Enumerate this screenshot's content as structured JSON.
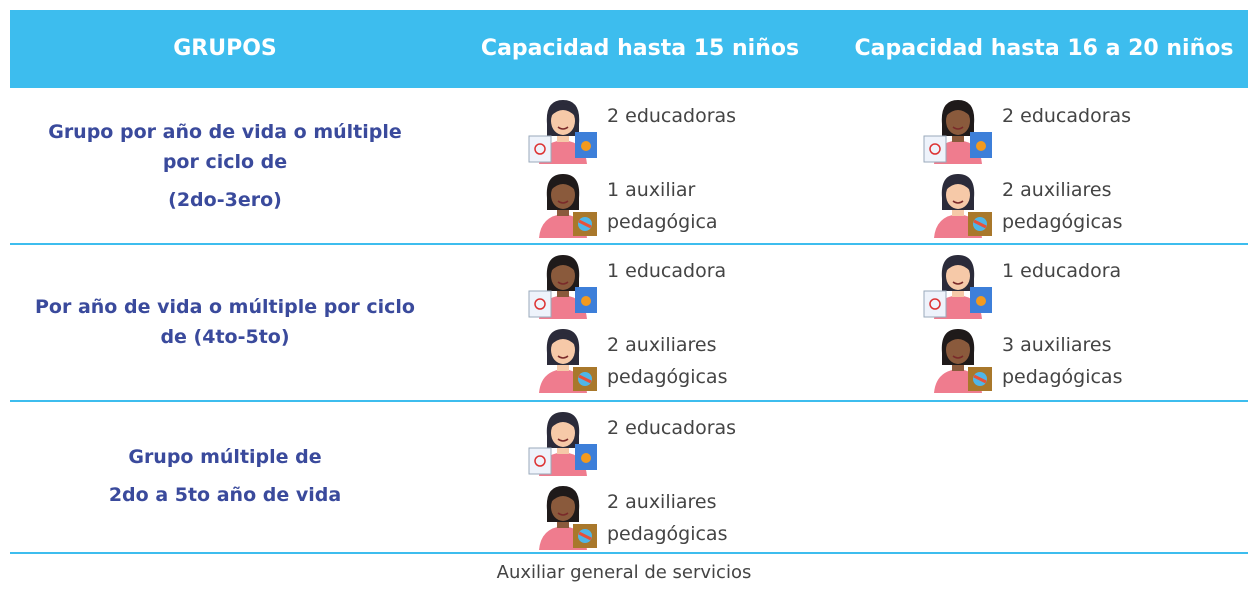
{
  "header": {
    "columns": [
      "GRUPOS",
      "Capacidad hasta 15 niños",
      "Capacidad hasta 16 a 20 niños"
    ]
  },
  "rows": [
    {
      "group": [
        "Grupo por año de vida o múltiple por ciclo de",
        "(2do-3ero)"
      ],
      "cap15": [
        "2 educadoras",
        "1 auxiliar pedagógica"
      ],
      "cap20": [
        "2 educadoras",
        "2 auxiliares pedagógicas"
      ]
    },
    {
      "group": [
        "Por año de vida o múltiple por ciclo de (4to-5to)"
      ],
      "cap15": [
        "1 educadora",
        "2 auxiliares pedagógicas"
      ],
      "cap20": [
        "1 educadora",
        "3 auxiliares pedagógicas"
      ]
    },
    {
      "group": [
        "Grupo múltiple de",
        "2do a 5to año de vida"
      ],
      "cap15": [
        "2 educadoras",
        "2 auxiliares pedagógicas"
      ]
    }
  ],
  "footer": "Auxiliar general de servicios"
}
